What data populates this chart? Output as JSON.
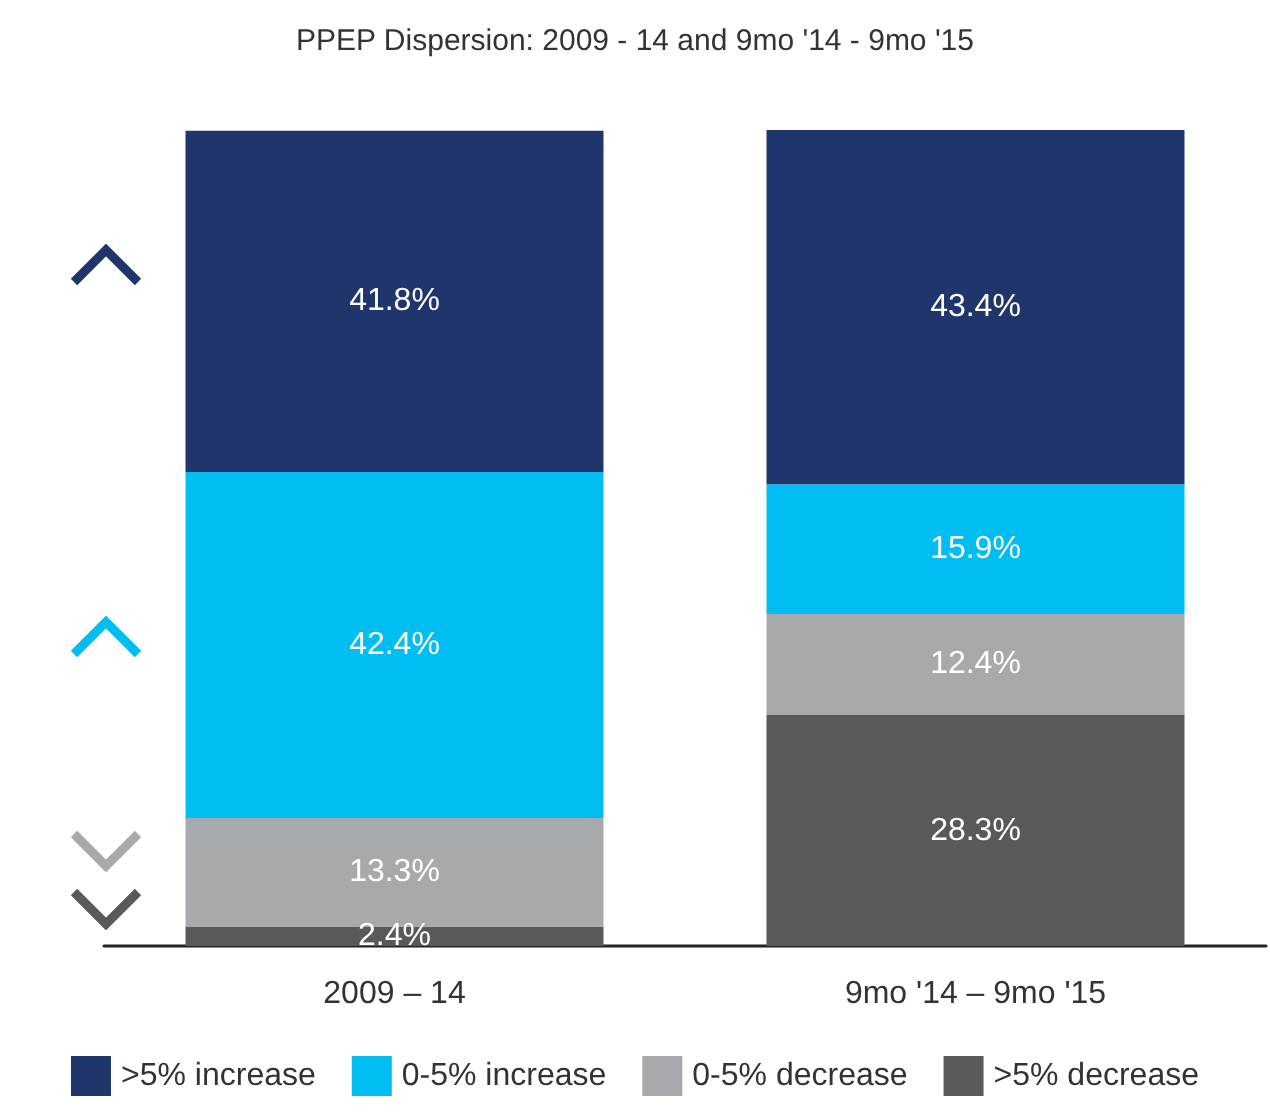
{
  "chart_data": {
    "type": "bar",
    "title": "PPEP Dispersion: 2009 - 14 and 9mo '14 - 9mo '15",
    "categories": [
      "2009 – 14",
      "9mo '14 – 9mo '15"
    ],
    "stacked": true,
    "legend": "bottom",
    "grid": false,
    "series": [
      {
        "name": ">5% decrease",
        "color": "#58595b",
        "values": [
          2.4,
          28.3
        ],
        "value_labels": [
          "2.4%",
          "28.3%"
        ]
      },
      {
        "name": "0-5% decrease",
        "color": "#a7a9ac",
        "values": [
          13.3,
          12.4
        ],
        "value_labels": [
          "13.3%",
          "12.4%"
        ]
      },
      {
        "name": "0-5% increase",
        "color": "#00bdf2",
        "values": [
          42.4,
          15.9
        ],
        "value_labels": [
          "42.4%",
          "15.9%"
        ]
      },
      {
        "name": ">5% increase",
        "color": "#1f356b",
        "values": [
          41.8,
          43.4
        ],
        "value_labels": [
          "41.8%",
          "43.4%"
        ]
      }
    ]
  }
}
